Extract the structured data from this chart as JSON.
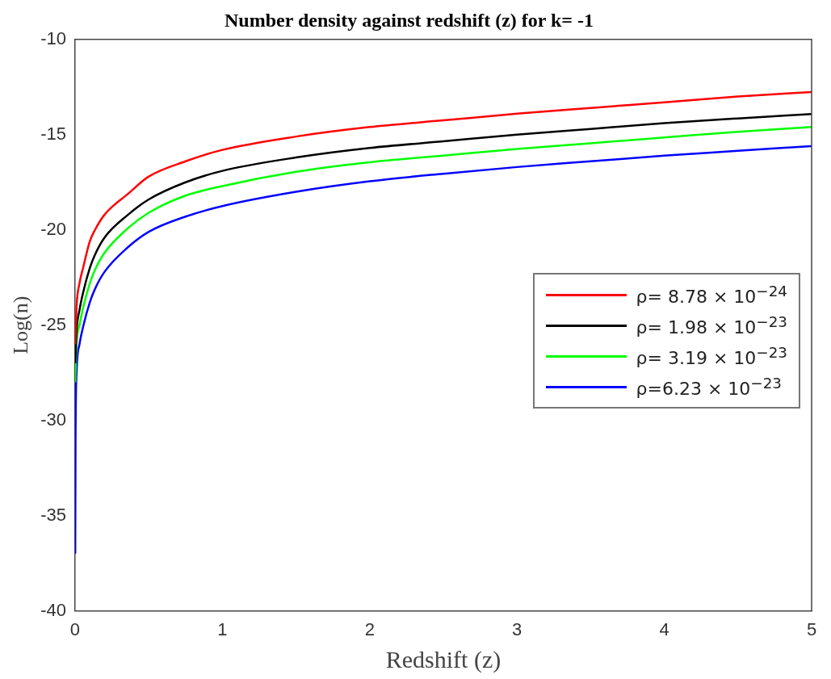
{
  "chart_data": {
    "type": "line",
    "title": "Number density against redshift (z) for k= -1",
    "xlabel": "Redshift (z)",
    "ylabel": "Log(n)",
    "xlim": [
      0,
      5
    ],
    "xticks": [
      0,
      1,
      2,
      3,
      4,
      5
    ],
    "ylim": [
      -40,
      -10
    ],
    "yticks": [
      -40,
      -35,
      -30,
      -25,
      -20,
      -15,
      -10
    ],
    "grid": false,
    "legend": "right",
    "marker": "none",
    "line_style": "solid",
    "series": [
      {
        "name": "ρ= 8.78 × 10$^{−24}$",
        "color": "#ff0000",
        "x": [
          0.001,
          0.01,
          0.03,
          0.054,
          0.1,
          0.135,
          0.2,
          0.36,
          0.5,
          0.75,
          1,
          1.5,
          2,
          2.5,
          3,
          3.5,
          4,
          4.5,
          5
        ],
        "values": [
          -26,
          -24,
          -22.8,
          -22,
          -20.6,
          -20,
          -19.2,
          -18.1,
          -17.2,
          -16.4,
          -15.8,
          -15.1,
          -14.6,
          -14.25,
          -13.9,
          -13.6,
          -13.3,
          -13.0,
          -12.76
        ]
      },
      {
        "name": "ρ= 1.98 × 10$^{−23}$",
        "color": "#000000",
        "x": [
          0.001,
          0.01,
          0.03,
          0.054,
          0.1,
          0.135,
          0.2,
          0.36,
          0.5,
          0.75,
          1,
          1.5,
          2,
          2.5,
          3,
          3.5,
          4,
          4.5,
          5
        ],
        "values": [
          -27,
          -25.3,
          -24.2,
          -23.3,
          -22,
          -21.3,
          -20.4,
          -19.2,
          -18.4,
          -17.5,
          -16.9,
          -16.2,
          -15.7,
          -15.35,
          -15.0,
          -14.7,
          -14.4,
          -14.15,
          -13.92
        ]
      },
      {
        "name": "ρ= 3.19 × 10$^{−23}$",
        "color": "#00ff00",
        "x": [
          0.001,
          0.01,
          0.03,
          0.054,
          0.1,
          0.135,
          0.2,
          0.36,
          0.5,
          0.75,
          1,
          1.5,
          2,
          2.5,
          3,
          3.5,
          4,
          4.5,
          5
        ],
        "values": [
          -28,
          -26,
          -25,
          -24.1,
          -22.8,
          -22.1,
          -21.2,
          -19.9,
          -19.1,
          -18.2,
          -17.7,
          -16.95,
          -16.45,
          -16.1,
          -15.75,
          -15.45,
          -15.15,
          -14.85,
          -14.6
        ]
      },
      {
        "name": "ρ=6.23 × 10$^{−23}$",
        "color": "#0000ff",
        "x": [
          0.001,
          0.003,
          0.01,
          0.03,
          0.054,
          0.1,
          0.135,
          0.2,
          0.36,
          0.5,
          0.75,
          1,
          1.5,
          2,
          2.5,
          3,
          3.5,
          4,
          4.5,
          5
        ],
        "values": [
          -37,
          -31,
          -27.5,
          -26,
          -25.1,
          -23.8,
          -23.1,
          -22.2,
          -20.9,
          -20.1,
          -19.3,
          -18.75,
          -18.0,
          -17.45,
          -17.05,
          -16.7,
          -16.4,
          -16.1,
          -15.85,
          -15.6
        ]
      }
    ]
  }
}
